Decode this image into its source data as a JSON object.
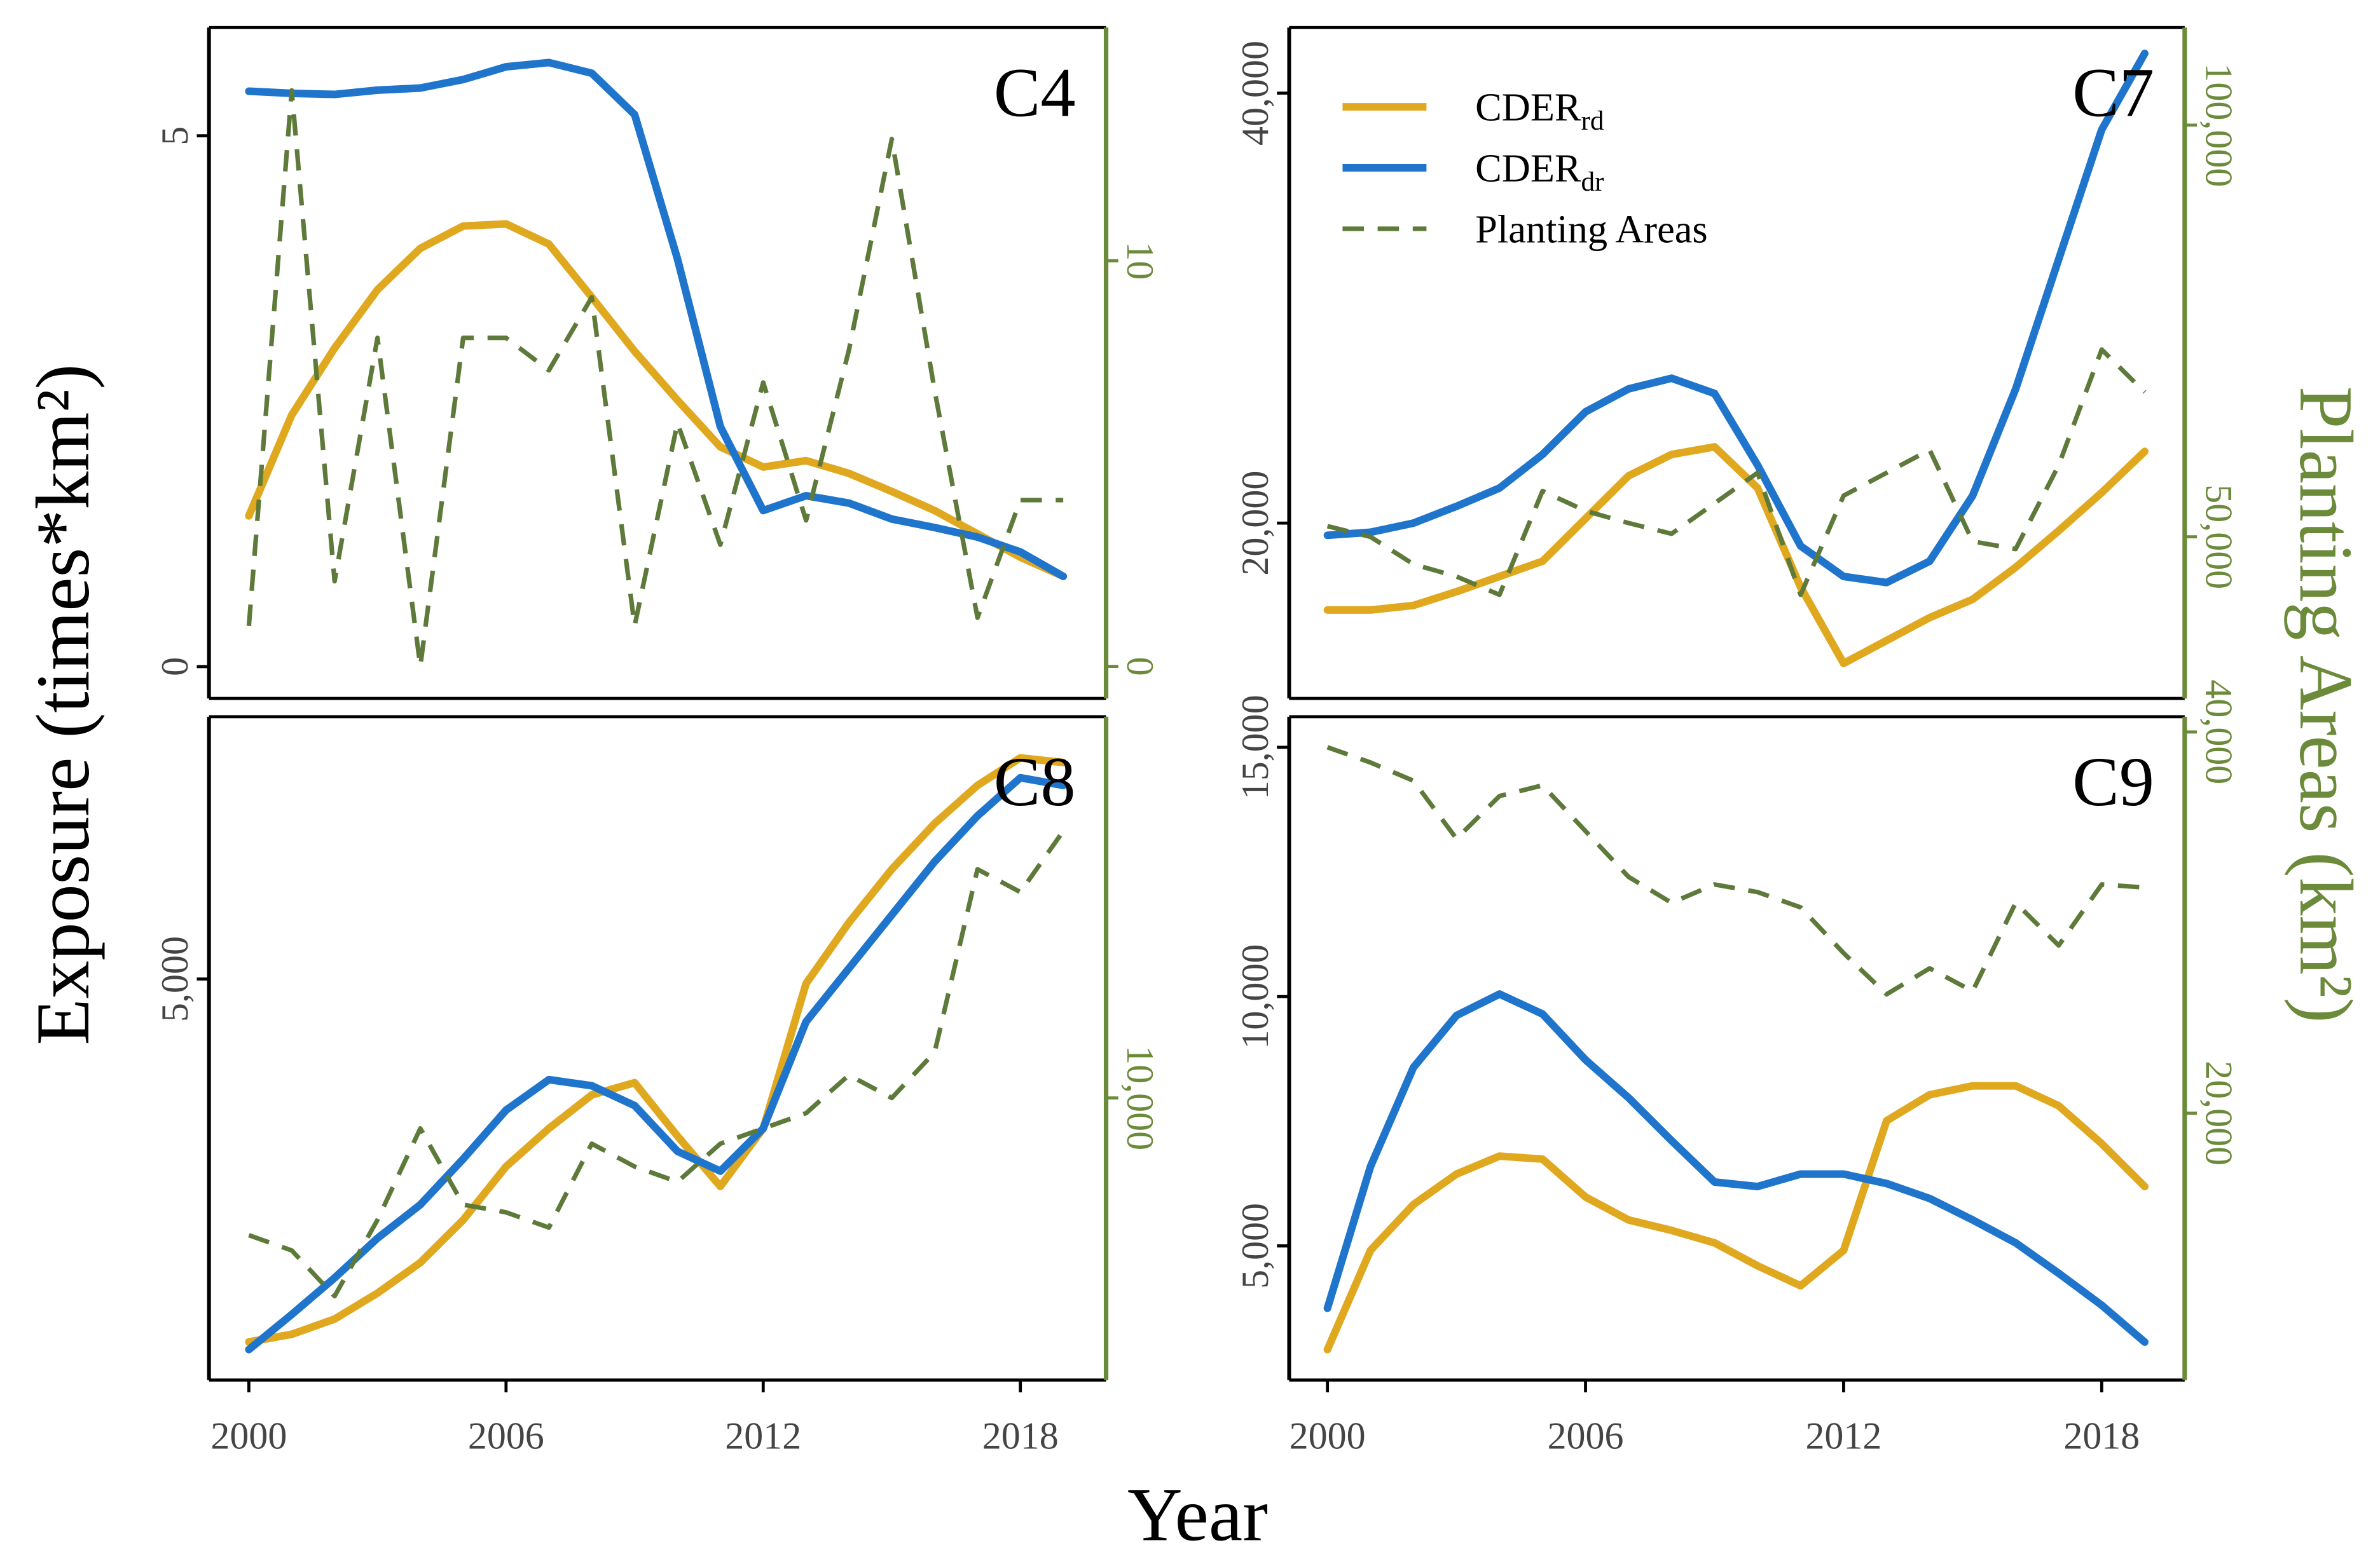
{
  "figure": {
    "x_label": "Year",
    "y_label": "Exposure (times*km²)",
    "y2_label": "Planting Areas (km²)",
    "axis_color": "#000000",
    "axis2_color": "#6b8a3a"
  },
  "chart_data": [
    {
      "type": "line",
      "title": "C4",
      "x": [
        2000,
        2001,
        2002,
        2003,
        2004,
        2005,
        2006,
        2007,
        2008,
        2009,
        2010,
        2011,
        2012,
        2013,
        2014,
        2015,
        2016,
        2017,
        2018,
        2019
      ],
      "xlim": [
        1999.07,
        2020.0
      ],
      "ylim": [
        -0.3,
        6.02
      ],
      "yticks": [
        0,
        5
      ],
      "y2lim": [
        -0.79,
        15.75
      ],
      "y2ticks": [
        0,
        10
      ],
      "series": [
        {
          "color": "#e0a81e",
          "linestyle": "solid",
          "values": [
            1.42,
            2.37,
            3.0,
            3.55,
            3.94,
            4.15,
            4.17,
            3.98,
            3.48,
            2.97,
            2.51,
            2.07,
            1.88,
            1.94,
            1.82,
            1.65,
            1.47,
            1.25,
            1.03,
            0.85
          ]
        },
        {
          "color": "#1f74cc",
          "linestyle": "solid",
          "values": [
            5.42,
            5.4,
            5.39,
            5.43,
            5.45,
            5.53,
            5.65,
            5.69,
            5.59,
            5.2,
            3.84,
            2.26,
            1.47,
            1.61,
            1.54,
            1.39,
            1.31,
            1.22,
            1.08,
            0.85
          ]
        },
        {
          "color": "#5e7a3a",
          "linestyle": "dashed",
          "axis": "y2",
          "values": [
            1.0,
            14.2,
            2.1,
            8.1,
            0,
            8.1,
            8.1,
            7.3,
            9.1,
            1.0,
            6.0,
            3.0,
            7.0,
            3.6,
            7.8,
            13.0,
            6.8,
            1.2,
            4.1,
            4.1
          ]
        }
      ]
    },
    {
      "type": "line",
      "title": "C7",
      "x": [
        2000,
        2001,
        2002,
        2003,
        2004,
        2005,
        2006,
        2007,
        2008,
        2009,
        2010,
        2011,
        2012,
        2013,
        2014,
        2015,
        2016,
        2017,
        2018,
        2019
      ],
      "xlim": [
        1999.11,
        2019.93
      ],
      "ylim": [
        11844,
        43050
      ],
      "yticks": [
        {
          "value": 20000,
          "label": "20,000"
        },
        {
          "value": 40000,
          "label": "40,000"
        }
      ],
      "y2lim": [
        30370,
        111852
      ],
      "y2ticks": [
        {
          "value": 50000,
          "label": "50,000"
        },
        {
          "value": 100000,
          "label": "100,000"
        }
      ],
      "series": [
        {
          "name": "CDERrd",
          "color": "#e0a81e",
          "linestyle": "solid",
          "values": [
            15957,
            15957,
            16170,
            16809,
            17518,
            18227,
            20213,
            22199,
            23191,
            23546,
            21631,
            17021,
            13475,
            14539,
            15603,
            16454,
            17943,
            19645,
            21418,
            23333
          ]
        },
        {
          "name": "CDERdr",
          "color": "#1f74cc",
          "linestyle": "solid",
          "values": [
            19433,
            19574,
            20000,
            20780,
            21631,
            23191,
            25177,
            26241,
            26738,
            26028,
            22695,
            18936,
            17518,
            17234,
            18227,
            21277,
            26241,
            32270,
            38298,
            41844
          ]
        },
        {
          "name": "Planting Areas",
          "color": "#5e7a3a",
          "linestyle": "dashed",
          "axis": "y2",
          "values": [
            51300,
            50000,
            46670,
            45180,
            42960,
            55560,
            53150,
            51670,
            50370,
            54070,
            57780,
            42960,
            55000,
            57780,
            60560,
            49440,
            48520,
            58700,
            72740,
            67560
          ]
        }
      ]
    },
    {
      "type": "line",
      "title": "C8",
      "x": [
        2000,
        2001,
        2002,
        2003,
        2004,
        2005,
        2006,
        2007,
        2008,
        2009,
        2010,
        2011,
        2012,
        2013,
        2014,
        2015,
        2016,
        2017,
        2018,
        2019
      ],
      "xlim": [
        1999.07,
        2020.0
      ],
      "xticks": [
        2000,
        2006,
        2012,
        2018
      ],
      "ylim": [
        2370,
        6720
      ],
      "yticks": [
        {
          "value": 5000,
          "label": "5,000"
        }
      ],
      "y2lim": [
        5375,
        16250
      ],
      "y2ticks": [
        {
          "value": 10000,
          "label": "10,000"
        }
      ],
      "series": [
        {
          "color": "#e0a81e",
          "linestyle": "solid",
          "values": [
            2620,
            2670,
            2770,
            2940,
            3140,
            3420,
            3770,
            4020,
            4240,
            4320,
            3970,
            3640,
            4020,
            4970,
            5370,
            5720,
            6020,
            6270,
            6450,
            6420
          ]
        },
        {
          "color": "#1f74cc",
          "linestyle": "solid",
          "values": [
            2570,
            2800,
            3040,
            3300,
            3520,
            3820,
            4140,
            4340,
            4300,
            4170,
            3870,
            3740,
            4020,
            4720,
            5070,
            5420,
            5770,
            6070,
            6320,
            6270
          ]
        },
        {
          "color": "#5e7a3a",
          "linestyle": "dashed",
          "axis": "y2",
          "values": [
            7750,
            7500,
            6750,
            8000,
            9500,
            8250,
            8125,
            7875,
            9250,
            8875,
            8625,
            9250,
            9500,
            9750,
            10375,
            10000,
            10750,
            13750,
            13375,
            14375
          ]
        }
      ]
    },
    {
      "type": "line",
      "title": "C9",
      "x": [
        2000,
        2001,
        2002,
        2003,
        2004,
        2005,
        2006,
        2007,
        2008,
        2009,
        2010,
        2011,
        2012,
        2013,
        2014,
        2015,
        2016,
        2017,
        2018,
        2019
      ],
      "xlim": [
        1999.11,
        2019.93
      ],
      "xticks": [
        2000,
        2006,
        2012,
        2018
      ],
      "ylim": [
        2309,
        15612
      ],
      "yticks": [
        {
          "value": 5000,
          "label": "5,000"
        },
        {
          "value": 10000,
          "label": "10,000"
        },
        {
          "value": 15000,
          "label": "15,000"
        }
      ],
      "y2lim": [
        6000,
        40800
      ],
      "y2ticks": [
        {
          "value": 20000,
          "label": "20,000"
        },
        {
          "value": 40000,
          "label": "40,000"
        }
      ],
      "series": [
        {
          "color": "#e0a81e",
          "linestyle": "solid",
          "values": [
            2920,
            4910,
            5830,
            6440,
            6800,
            6740,
            5980,
            5520,
            5310,
            5060,
            4600,
            4200,
            4910,
            7510,
            8030,
            8210,
            8210,
            7810,
            7050,
            6190
          ]
        },
        {
          "color": "#1f74cc",
          "linestyle": "solid",
          "values": [
            3750,
            6590,
            8580,
            9620,
            10050,
            9650,
            8730,
            7970,
            7110,
            6280,
            6190,
            6440,
            6440,
            6250,
            5950,
            5520,
            5060,
            4450,
            3810,
            3070
          ]
        },
        {
          "color": "#5e7a3a",
          "linestyle": "dashed",
          "axis": "y2",
          "values": [
            39200,
            38400,
            37440,
            34400,
            36640,
            37200,
            34800,
            32400,
            31040,
            32000,
            31600,
            30800,
            28400,
            26240,
            27600,
            26400,
            31040,
            28800,
            32000,
            31840
          ]
        }
      ]
    }
  ]
}
